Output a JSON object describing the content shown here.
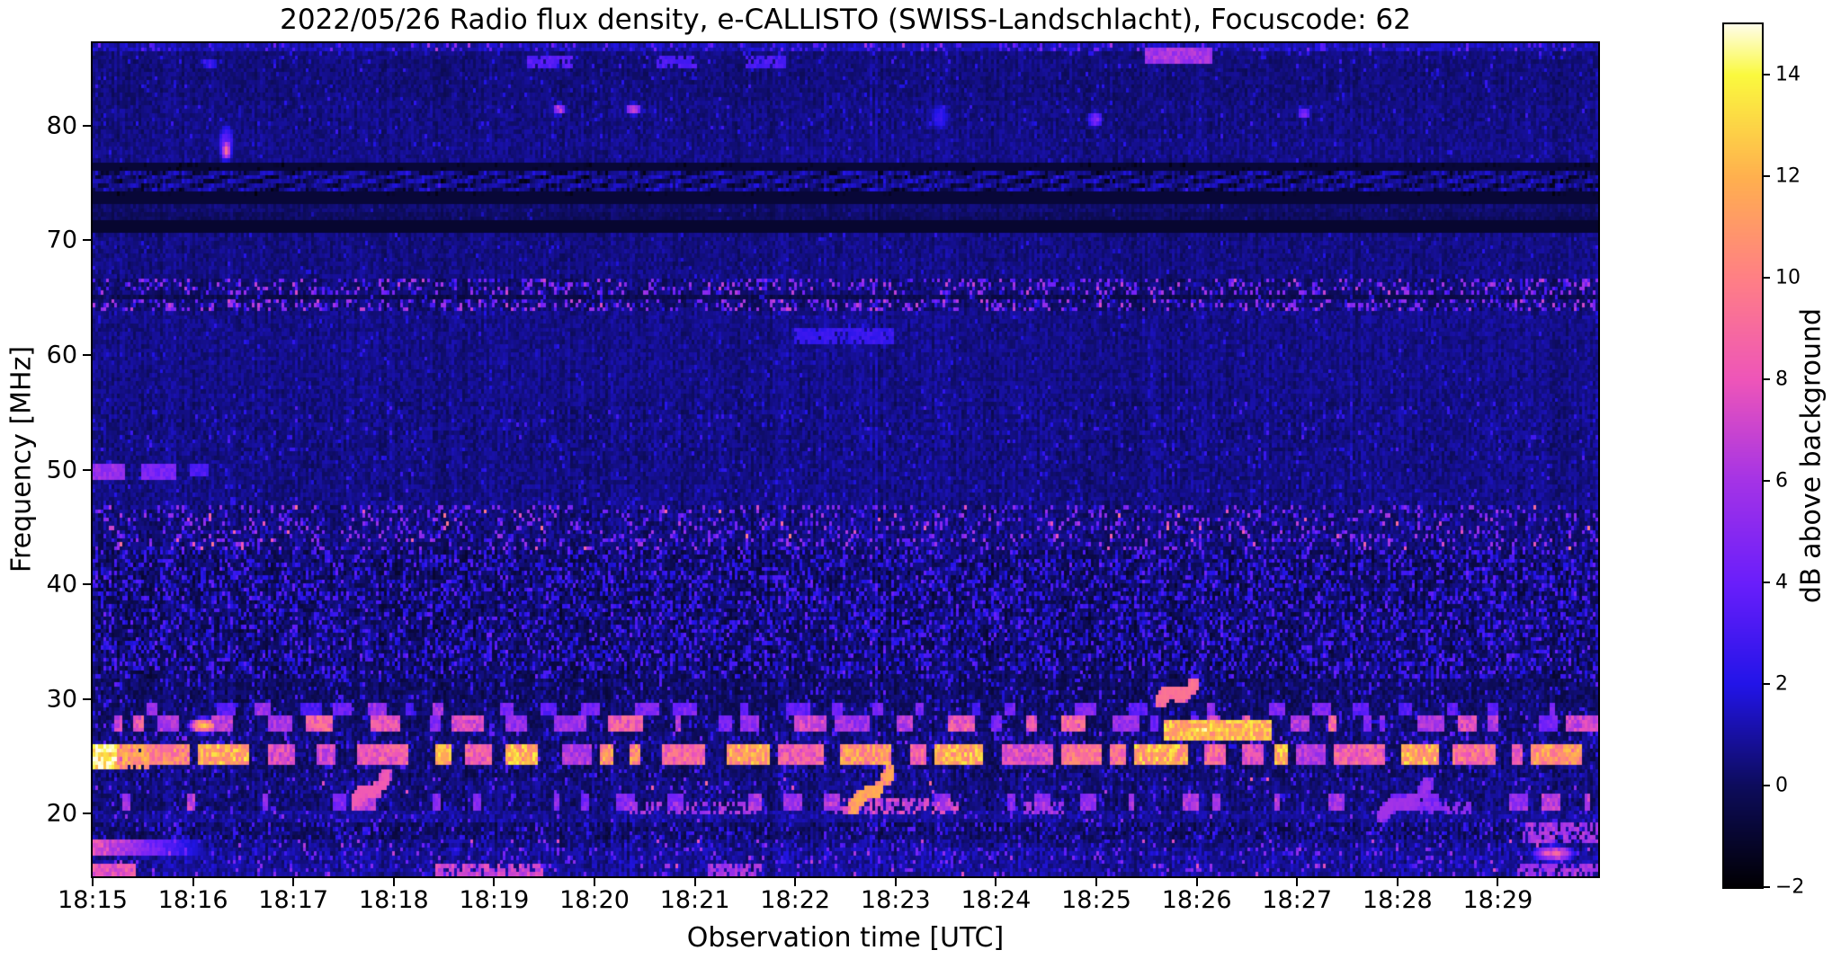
{
  "chart_data": {
    "type": "heatmap",
    "title": "2022/05/26  Radio flux density, e-CALLISTO (SWISS-Landschlacht), Focuscode: 62",
    "xlabel": "Observation time [UTC]",
    "ylabel": "Frequency [MHz]",
    "x_ticks": [
      "18:15",
      "18:16",
      "18:17",
      "18:18",
      "18:19",
      "18:20",
      "18:21",
      "18:22",
      "18:23",
      "18:24",
      "18:25",
      "18:26",
      "18:27",
      "18:28",
      "18:29"
    ],
    "x_span_minutes": 15,
    "y_ticks": [
      80,
      70,
      60,
      50,
      40,
      30,
      20
    ],
    "f_range": [
      14.55,
      87.2
    ],
    "grid": false,
    "colorbar": {
      "label": "dB above background",
      "range": [
        -2,
        15
      ],
      "ticks": [
        14,
        12,
        10,
        8,
        6,
        4,
        2,
        0,
        -2
      ],
      "stops": [
        [
          -2,
          "#010003"
        ],
        [
          0,
          "#0d0c5c"
        ],
        [
          2,
          "#2214e8"
        ],
        [
          4,
          "#6a1efb"
        ],
        [
          6,
          "#a433e6"
        ],
        [
          8,
          "#ee55b9"
        ],
        [
          10,
          "#ff7f85"
        ],
        [
          12,
          "#ffb04e"
        ],
        [
          14,
          "#faf93e"
        ],
        [
          15,
          "#fffde8"
        ]
      ]
    },
    "noise_seed": 42,
    "bands": [
      {
        "f": [
          86.5,
          87.2
        ],
        "base": 1.2,
        "amp": 0.75,
        "p": 0.12,
        "s": [
          1,
          3
        ],
        "hot_p": 0.015,
        "hot": [
          4,
          7
        ]
      },
      {
        "f": [
          85.1,
          86.5
        ],
        "base": 0.45,
        "amp": 0.55,
        "p": 0.05,
        "s": [
          0.8,
          2.2
        ]
      },
      {
        "f": [
          82.0,
          85.1
        ],
        "base": 0.42,
        "amp": 0.6,
        "p": 0.04,
        "s": [
          0.6,
          1.8
        ]
      },
      {
        "f": [
          79.0,
          82.0
        ],
        "base": 0.52,
        "amp": 0.65,
        "p": 0.04,
        "s": [
          0.6,
          1.8
        ]
      },
      {
        "f": [
          76.7,
          79.0
        ],
        "base": 0.6,
        "amp": 0.6,
        "p": 0.03,
        "s": [
          0.5,
          1.5
        ]
      },
      {
        "f": [
          74.0,
          76.7
        ],
        "base": 0.5,
        "amp": 0.5,
        "p": 0.02,
        "s": [
          0.5,
          1.2
        ],
        "hb": {
          "period": 50,
          "slope": 4,
          "dark": -1.3,
          "bright": 0.85
        }
      },
      {
        "f": [
          72.6,
          74.0
        ],
        "base": 0.22,
        "amp": 0.5,
        "p": 0.02,
        "s": [
          0.5,
          1.5
        ]
      },
      {
        "f": [
          71.2,
          72.6
        ],
        "base": 0.02,
        "amp": 0.45,
        "p": 0.02,
        "s": [
          0.5,
          1.5
        ]
      },
      {
        "f": [
          66.6,
          71.2
        ],
        "base": 0.5,
        "amp": 0.62,
        "p": 0.03,
        "s": [
          0.5,
          1.5
        ]
      },
      {
        "f": [
          65.3,
          66.6
        ],
        "base": 0.3,
        "amp": 0.85,
        "p": 0.26,
        "s": [
          1.5,
          6.5
        ]
      },
      {
        "f": [
          64.9,
          65.3
        ],
        "base": -0.3,
        "amp": 0.5,
        "p": 0.06,
        "s": [
          1,
          3
        ]
      },
      {
        "f": [
          63.7,
          64.9
        ],
        "base": 0.3,
        "amp": 0.85,
        "p": 0.26,
        "s": [
          1.5,
          6.5
        ]
      },
      {
        "f": [
          56.0,
          63.7
        ],
        "base": 0.6,
        "amp": 0.65,
        "p": 0.03,
        "s": [
          0.5,
          1.5
        ]
      },
      {
        "f": [
          51.0,
          56.0
        ],
        "base": 0.55,
        "amp": 0.78,
        "p": 0.05,
        "s": [
          0.8,
          2.2
        ]
      },
      {
        "f": [
          46.9,
          51.0
        ],
        "base": 0.55,
        "amp": 0.7,
        "p": 0.04,
        "s": [
          0.8,
          2
        ]
      },
      {
        "f": [
          43.0,
          46.9
        ],
        "base": 0.38,
        "amp": 0.95,
        "p": 0.17,
        "s": [
          1.5,
          5.5
        ],
        "hot_p": 0.01,
        "hot": [
          7,
          10
        ]
      },
      {
        "f": [
          31.8,
          43.0
        ],
        "base": 0.02,
        "amp": 1.05,
        "p": 0.3,
        "s": [
          1.2,
          3.4
        ]
      },
      {
        "f": [
          29.8,
          31.8
        ],
        "base": 0.08,
        "amp": 0.85,
        "p": 0.1,
        "s": [
          1,
          3
        ]
      },
      {
        "f": [
          28.6,
          29.8
        ],
        "base": 0.15,
        "amp": 0.8,
        "p": 0.08,
        "s": [
          1,
          3
        ],
        "seg": {
          "len": [
            6,
            28
          ],
          "gap": [
            10,
            70
          ],
          "val": [
            3,
            6
          ]
        }
      },
      {
        "f": [
          27.0,
          28.6
        ],
        "base": 0.18,
        "amp": 0.85,
        "p": 0.08,
        "s": [
          1,
          3
        ],
        "seg": {
          "len": [
            6,
            40
          ],
          "gap": [
            6,
            46
          ],
          "val": [
            4,
            9
          ]
        }
      },
      {
        "f": [
          25.9,
          27.0
        ],
        "base": 0.35,
        "amp": 0.95,
        "p": 0.12,
        "s": [
          1,
          4
        ]
      },
      {
        "f": [
          24.4,
          25.9
        ],
        "base": 0.22,
        "amp": 0.9,
        "p": 0.08,
        "s": [
          1,
          3
        ],
        "seg": {
          "len": [
            10,
            60
          ],
          "gap": [
            5,
            32
          ],
          "val": [
            6,
            12
          ]
        }
      },
      {
        "f": [
          23.2,
          24.4
        ],
        "base": 0.28,
        "amp": 1.0,
        "p": 0.1,
        "s": [
          1,
          3
        ]
      },
      {
        "f": [
          21.6,
          23.2
        ],
        "base": 0.45,
        "amp": 0.9,
        "p": 0.07,
        "s": [
          1.5,
          4
        ],
        "hot_p": 0.008,
        "hot": [
          6,
          9
        ]
      },
      {
        "f": [
          20.4,
          21.6
        ],
        "base": 0.35,
        "amp": 0.9,
        "p": 0.08,
        "s": [
          1,
          3
        ],
        "seg": {
          "len": [
            5,
            22
          ],
          "gap": [
            14,
            80
          ],
          "val": [
            4,
            7
          ]
        }
      },
      {
        "f": [
          19.4,
          20.4
        ],
        "base": 0.8,
        "amp": 0.8,
        "p": 0.06,
        "s": [
          1,
          3
        ],
        "hot_p": 0.01,
        "hot": [
          4,
          6
        ]
      },
      {
        "f": [
          17.9,
          19.4
        ],
        "base": 0.12,
        "amp": 0.95,
        "p": 0.2,
        "s": [
          1,
          3
        ]
      },
      {
        "f": [
          16.9,
          17.9
        ],
        "base": 0.6,
        "amp": 0.95,
        "p": 0.07,
        "s": [
          1.5,
          4
        ],
        "hot_p": 0.02,
        "hot": [
          5,
          8
        ]
      },
      {
        "f": [
          15.8,
          16.9
        ],
        "base": 0.85,
        "amp": 0.95,
        "p": 0.1,
        "s": [
          1.5,
          4
        ],
        "hot_p": 0.01,
        "hot": [
          5,
          7
        ]
      },
      {
        "f": [
          14.55,
          15.8
        ],
        "base": 0.9,
        "amp": 0.9,
        "p": 0.08,
        "s": [
          1.5,
          4
        ],
        "hot_p": 0.015,
        "hot": [
          5,
          8
        ]
      }
    ],
    "features": [
      {
        "type": "blob",
        "t": [
          1.26,
          1.38
        ],
        "f": [
          76.8,
          80.2
        ],
        "val": 4,
        "soft": true
      },
      {
        "type": "blob",
        "t": [
          1.29,
          1.36
        ],
        "f": [
          77.3,
          78.8
        ],
        "val": 9,
        "soft": true
      },
      {
        "type": "blob",
        "t": [
          4.58,
          4.7
        ],
        "f": [
          81.2,
          81.9
        ],
        "val": 7,
        "soft": true
      },
      {
        "type": "blob",
        "t": [
          5.32,
          5.44
        ],
        "f": [
          81.3,
          82.0
        ],
        "val": 8,
        "soft": true
      },
      {
        "type": "blob",
        "t": [
          8.36,
          8.5
        ],
        "f": [
          80.0,
          82.0
        ],
        "val": 2.6,
        "soft": true
      },
      {
        "type": "blob",
        "t": [
          9.9,
          10.04
        ],
        "f": [
          80.3,
          81.4
        ],
        "val": 5,
        "soft": true
      },
      {
        "type": "blob",
        "t": [
          12.0,
          12.12
        ],
        "f": [
          81.0,
          81.8
        ],
        "val": 5,
        "soft": true
      },
      {
        "type": "blob",
        "t": [
          1.08,
          1.22
        ],
        "f": [
          85.3,
          85.9
        ],
        "val": 3,
        "soft": true
      },
      {
        "type": "hline",
        "t": [
          10.5,
          11.12
        ],
        "f": [
          86.1,
          86.55
        ],
        "val": 6
      },
      {
        "type": "hline",
        "t": [
          4.35,
          4.78
        ],
        "f": [
          85.7,
          86.1
        ],
        "val": 3.5,
        "broken": 0.25
      },
      {
        "type": "hline",
        "t": [
          5.62,
          5.98
        ],
        "f": [
          85.7,
          86.1
        ],
        "val": 3.2,
        "broken": 0.25
      },
      {
        "type": "hline",
        "t": [
          6.52,
          6.88
        ],
        "f": [
          85.7,
          86.1
        ],
        "val": 3.2,
        "broken": 0.25
      },
      {
        "type": "hline",
        "t": [
          0.0,
          0.27
        ],
        "f": [
          49.75,
          50.45
        ],
        "val": 5.5
      },
      {
        "type": "hline",
        "t": [
          0.5,
          0.78
        ],
        "f": [
          49.75,
          50.45
        ],
        "val": 4.5
      },
      {
        "type": "hline",
        "t": [
          0.97,
          1.12
        ],
        "f": [
          49.85,
          50.35
        ],
        "val": 3.2
      },
      {
        "type": "hline",
        "t": [
          7.0,
          7.95
        ],
        "f": [
          61.6,
          62.1
        ],
        "val": 2.6,
        "broken": 0.2
      },
      {
        "type": "diag",
        "t": [
          2.6,
          2.92
        ],
        "f": [
          21.2,
          23.3
        ],
        "val": 7,
        "w": 5
      },
      {
        "type": "diag",
        "t": [
          7.56,
          7.94
        ],
        "f": [
          20.7,
          23.6
        ],
        "val": 10,
        "w": 5
      },
      {
        "type": "diag",
        "t": [
          12.83,
          13.3
        ],
        "f": [
          19.9,
          22.6
        ],
        "val": 5,
        "w": 5
      },
      {
        "type": "diag",
        "t": [
          10.62,
          10.98
        ],
        "f": [
          30.0,
          31.4
        ],
        "val": 8,
        "w": 6
      },
      {
        "type": "hline",
        "t": [
          10.68,
          11.72
        ],
        "f": [
          27.1,
          27.9
        ],
        "val": 12
      },
      {
        "type": "blob",
        "t": [
          10.8,
          11.3
        ],
        "f": [
          27.2,
          27.85
        ],
        "val": 14,
        "soft": true
      },
      {
        "type": "blob",
        "t": [
          0.95,
          1.22
        ],
        "f": [
          27.4,
          28.3
        ],
        "val": 13,
        "soft": true
      },
      {
        "type": "hline",
        "t": [
          0.0,
          0.2
        ],
        "f": [
          24.5,
          25.8
        ],
        "val": 14
      },
      {
        "type": "hline",
        "t": [
          0.2,
          0.52
        ],
        "f": [
          24.5,
          25.7
        ],
        "val": 11,
        "broken": 0.2
      },
      {
        "type": "hline",
        "t": [
          0.0,
          1.05
        ],
        "f": [
          16.9,
          17.45
        ],
        "val": 8,
        "fade": true
      },
      {
        "type": "hline",
        "t": [
          0.02,
          0.38
        ],
        "f": [
          14.9,
          15.45
        ],
        "val": 8
      },
      {
        "type": "hline",
        "t": [
          3.42,
          4.45
        ],
        "f": [
          14.95,
          15.5
        ],
        "val": 7,
        "broken": 0.3
      },
      {
        "type": "hline",
        "t": [
          6.15,
          6.62
        ],
        "f": [
          15.05,
          15.5
        ],
        "val": 6,
        "broken": 0.3
      },
      {
        "type": "hline",
        "t": [
          7.35,
          8.6
        ],
        "f": [
          20.5,
          21.05
        ],
        "val": 7,
        "broken": 0.45
      },
      {
        "type": "hline",
        "t": [
          5.3,
          6.6
        ],
        "f": [
          20.5,
          21.0
        ],
        "val": 6,
        "broken": 0.5
      },
      {
        "type": "hline",
        "t": [
          9.3,
          9.65
        ],
        "f": [
          20.5,
          21.0
        ],
        "val": 6,
        "broken": 0.4
      },
      {
        "type": "hline",
        "t": [
          13.15,
          13.7
        ],
        "f": [
          20.5,
          21.0
        ],
        "val": 5,
        "broken": 0.4
      },
      {
        "type": "blob",
        "t": [
          14.35,
          14.75
        ],
        "f": [
          16.2,
          17.2
        ],
        "val": 8,
        "soft": true
      },
      {
        "type": "hline",
        "t": [
          14.25,
          15.0
        ],
        "f": [
          17.9,
          19.0
        ],
        "val": 6,
        "broken": 0.35
      },
      {
        "type": "hline",
        "t": [
          14.2,
          15.0
        ],
        "f": [
          14.9,
          15.4
        ],
        "val": 6,
        "broken": 0.3
      },
      {
        "type": "hline",
        "t": [
          0,
          15
        ],
        "f": [
          76.55,
          76.75
        ],
        "val": -0.8,
        "dark": true
      },
      {
        "type": "hline",
        "t": [
          0,
          15
        ],
        "f": [
          73.8,
          74.0
        ],
        "val": -0.8,
        "dark": true
      },
      {
        "type": "hline",
        "t": [
          0,
          15
        ],
        "f": [
          71.25,
          71.5
        ],
        "val": -1.0,
        "dark": true
      }
    ]
  }
}
